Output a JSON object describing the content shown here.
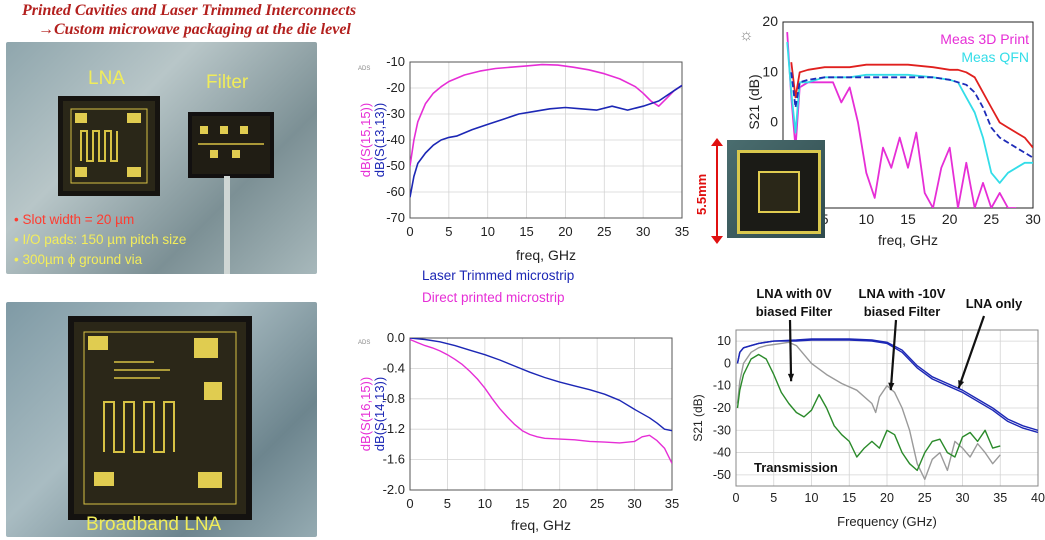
{
  "header": {
    "line1": "Printed Cavities and Laser Trimmed Interconnects",
    "line2": "→Custom microwave packaging at the die level"
  },
  "photo_top": {
    "label_lna": "LNA",
    "label_filter": "Filter",
    "bullets": [
      "Slot width = 20 µm",
      "I/O pads: 150 µm pitch size",
      "300µm ϕ ground via"
    ]
  },
  "photo_bottom": {
    "label": "Broadband LNA"
  },
  "mid_legend": {
    "laser": "Laser Trimmed microstrip",
    "direct": "Direct printed microstrip"
  },
  "colors": {
    "header": "#b3201e",
    "magenta": "#e62ed6",
    "navy": "#1c27b5",
    "red": "#e0201e",
    "dark_blue": "#1e2bb8",
    "cyan": "#33dde8",
    "green": "#2a8a2a",
    "gray": "#9a9a9a",
    "arrow_red": "#e01010"
  },
  "inset": {
    "dimension": "5.5mm"
  },
  "chart_data": [
    {
      "type": "line",
      "id": "return-loss",
      "badge": "ADS",
      "xlabel": "freq, GHz",
      "ylabel_series": [
        "dB(S(15,15))",
        "dB(S(13,13))"
      ],
      "xlim": [
        0,
        35
      ],
      "ylim": [
        -70,
        -10
      ],
      "xticks": [
        0,
        5,
        10,
        15,
        20,
        25,
        30,
        35
      ],
      "yticks": [
        -10,
        -20,
        -30,
        -40,
        -50,
        -60,
        -70
      ],
      "grid": true,
      "series": [
        {
          "color_key": "magenta",
          "x": [
            0,
            0.5,
            1,
            2,
            3,
            4,
            5,
            7,
            9,
            11,
            13,
            15,
            17,
            19,
            21,
            23,
            25,
            27,
            29,
            30,
            31,
            32,
            33,
            34,
            35
          ],
          "y": [
            -50,
            -40,
            -33,
            -26,
            -22,
            -19.5,
            -17.5,
            -15,
            -13.5,
            -12.5,
            -12,
            -11.5,
            -11,
            -11.2,
            -12,
            -13,
            -14.5,
            -16.5,
            -19.5,
            -22,
            -25,
            -27,
            -24,
            -21,
            -19
          ]
        },
        {
          "color_key": "navy",
          "x": [
            0,
            0.5,
            1,
            2,
            3,
            4,
            5,
            6,
            8,
            10,
            12,
            14,
            16,
            18,
            20,
            22,
            24,
            26,
            28,
            30,
            32,
            34,
            35
          ],
          "y": [
            -62,
            -54,
            -49,
            -45,
            -42,
            -40,
            -39,
            -38.5,
            -36,
            -34,
            -32,
            -30,
            -29,
            -28,
            -27.5,
            -28,
            -28.5,
            -27,
            -28.5,
            -27,
            -25,
            -21,
            -19
          ]
        }
      ]
    },
    {
      "type": "line",
      "id": "insertion-loss",
      "badge": "ADS",
      "xlabel": "freq, GHz",
      "ylabel_series": [
        "dB(S(16,15))",
        "dB(S(14,13))"
      ],
      "xlim": [
        0,
        35
      ],
      "ylim": [
        -2.0,
        0.0
      ],
      "xticks": [
        0,
        5,
        10,
        15,
        20,
        25,
        30,
        35
      ],
      "yticks": [
        "0.0",
        "-0.4",
        "-0.8",
        "-1.2",
        "-1.6",
        "-2.0"
      ],
      "yticks_values": [
        0,
        -0.4,
        -0.8,
        -1.2,
        -1.6,
        -2.0
      ],
      "grid": true,
      "series": [
        {
          "color_key": "magenta",
          "x": [
            0,
            1,
            2,
            3,
            4,
            5,
            6,
            7,
            8,
            9,
            10,
            11,
            12,
            13,
            14,
            15,
            16,
            17,
            18,
            20,
            22,
            24,
            26,
            28,
            30,
            31,
            32,
            33,
            34,
            35
          ],
          "y": [
            -0.02,
            -0.06,
            -0.1,
            -0.13,
            -0.17,
            -0.22,
            -0.28,
            -0.35,
            -0.44,
            -0.54,
            -0.66,
            -0.8,
            -0.93,
            -1.04,
            -1.14,
            -1.22,
            -1.27,
            -1.3,
            -1.32,
            -1.33,
            -1.34,
            -1.36,
            -1.37,
            -1.38,
            -1.36,
            -1.3,
            -1.28,
            -1.35,
            -1.45,
            -1.65
          ]
        },
        {
          "color_key": "navy",
          "x": [
            0,
            2,
            4,
            6,
            8,
            10,
            12,
            14,
            16,
            18,
            20,
            22,
            24,
            26,
            28,
            30,
            32,
            33,
            34,
            35
          ],
          "y": [
            0,
            -0.02,
            -0.05,
            -0.1,
            -0.16,
            -0.22,
            -0.29,
            -0.37,
            -0.45,
            -0.52,
            -0.58,
            -0.63,
            -0.68,
            -0.74,
            -0.82,
            -0.94,
            -1.05,
            -1.12,
            -1.2,
            -1.22
          ]
        }
      ]
    },
    {
      "type": "line",
      "id": "package-s21",
      "xlabel": "freq, GHz",
      "ylabel": "S21 (dB)",
      "xlim": [
        0,
        30
      ],
      "ylim": [
        -17,
        20
      ],
      "xticks": [
        5,
        10,
        15,
        20,
        25,
        30
      ],
      "yticks": [
        20,
        10,
        0
      ],
      "grid": false,
      "series": [
        {
          "name": "Meas 3D Print",
          "color_key": "magenta",
          "x": [
            0.5,
            1,
            1.5,
            2,
            3,
            4,
            5,
            6,
            7,
            8,
            9,
            10,
            11,
            12,
            13,
            14,
            15,
            16,
            17,
            18,
            19,
            20,
            21,
            22,
            23,
            24,
            25,
            26,
            27,
            28
          ],
          "y": [
            18,
            5,
            -5,
            7,
            8,
            8,
            8,
            8,
            4,
            7,
            0,
            -10,
            -15,
            -5,
            -9,
            -3,
            -9,
            -2,
            -14,
            -17,
            -9,
            -5,
            -17,
            -8,
            -17,
            -12,
            -17,
            -14,
            -17,
            -17
          ]
        },
        {
          "name": "Meas QFN",
          "color_key": "cyan",
          "x": [
            0.5,
            1,
            1.5,
            2,
            3,
            5,
            8,
            10,
            12,
            15,
            18,
            20,
            21,
            22,
            23,
            24,
            25,
            26,
            27,
            28,
            29,
            30
          ],
          "y": [
            16,
            6,
            -2,
            8,
            8,
            9,
            9,
            9.5,
            9.5,
            9.5,
            9,
            8.5,
            8,
            5,
            2,
            -3,
            -10,
            -12,
            -10,
            -9,
            -8,
            -8
          ]
        },
        {
          "color_key": "red",
          "x": [
            1,
            1.5,
            2,
            3,
            5,
            8,
            10,
            12,
            15,
            18,
            20,
            21,
            22,
            23,
            24,
            25,
            26,
            27,
            28,
            29,
            30
          ],
          "y": [
            12,
            5,
            10,
            10.5,
            11,
            11,
            11.5,
            11.5,
            11.5,
            11,
            10.5,
            10.5,
            10,
            9,
            6,
            3,
            0,
            -1,
            -2,
            -3,
            -5
          ]
        },
        {
          "color_key": "dark_blue",
          "dash": true,
          "x": [
            1,
            1.5,
            2,
            3,
            5,
            8,
            10,
            12,
            15,
            18,
            20,
            21,
            22,
            23,
            24,
            25,
            26,
            27,
            28,
            29,
            30
          ],
          "y": [
            10,
            3,
            8,
            8.5,
            9,
            9,
            9,
            9,
            9,
            9,
            8.5,
            8,
            7.5,
            6,
            3,
            -1,
            -3,
            -4,
            -5,
            -6,
            -7
          ]
        }
      ]
    },
    {
      "type": "line",
      "id": "lna-filter-s21",
      "xlabel": "Frequency (GHz)",
      "ylabel": "S21 (dB)",
      "xlim": [
        0,
        40
      ],
      "ylim": [
        -55,
        15
      ],
      "xticks": [
        0,
        5,
        10,
        15,
        20,
        25,
        30,
        35,
        40
      ],
      "yticks": [
        10,
        0,
        -10,
        -20,
        -30,
        -40,
        -50
      ],
      "grid": true,
      "annotations": [
        "LNA with 0V biased Filter",
        "LNA with -10V biased Filter",
        "LNA only",
        "Transmission"
      ],
      "series": [
        {
          "color_key": "navy",
          "x": [
            0.2,
            0.5,
            1,
            2,
            3,
            5,
            8,
            10,
            15,
            18,
            20,
            22,
            24,
            26,
            28,
            30,
            32,
            34,
            36,
            38,
            40
          ],
          "y": [
            0,
            5,
            7,
            8,
            9,
            10,
            10,
            10.5,
            10.5,
            10,
            9,
            5,
            -2,
            -7,
            -10,
            -13,
            -17,
            -21,
            -26,
            -29,
            -31
          ]
        },
        {
          "color_key": "navy",
          "x": [
            0.2,
            0.5,
            1,
            2,
            3,
            5,
            8,
            10,
            15,
            18,
            20,
            22,
            24,
            26,
            28,
            30,
            32,
            34,
            36,
            38,
            40
          ],
          "y": [
            0,
            5,
            7,
            8,
            9,
            10,
            10.5,
            11,
            11,
            10.5,
            9.5,
            6,
            -1,
            -6,
            -9,
            -12,
            -16,
            -20,
            -25,
            -28,
            -30
          ]
        },
        {
          "color_key": "gray",
          "x": [
            0.2,
            0.5,
            1,
            2,
            3,
            4,
            5,
            6,
            7,
            8,
            10,
            12,
            14,
            16,
            18,
            18.5,
            19,
            20,
            21,
            22,
            23,
            24,
            25,
            26,
            27,
            28,
            29,
            30,
            31,
            32,
            33,
            34,
            35
          ],
          "y": [
            -18,
            -8,
            0,
            5,
            7,
            8,
            8.5,
            9,
            9.5,
            8,
            0,
            -5,
            -9,
            -12,
            -18,
            -22,
            -15,
            -10,
            -13,
            -20,
            -30,
            -45,
            -52,
            -43,
            -40,
            -48,
            -35,
            -38,
            -42,
            -36,
            -40,
            -45,
            -41
          ]
        },
        {
          "color_key": "green",
          "x": [
            0.2,
            0.5,
            1,
            2,
            3,
            4,
            5,
            6,
            7,
            8,
            9,
            10,
            11,
            12,
            13,
            14,
            15,
            16,
            17,
            18,
            19,
            20,
            21,
            22,
            23,
            24,
            25,
            26,
            27,
            28,
            29,
            30,
            31,
            32,
            33,
            34,
            35
          ],
          "y": [
            -20,
            -12,
            -5,
            2,
            4,
            2,
            -5,
            -13,
            -18,
            -22,
            -24,
            -21,
            -14,
            -20,
            -28,
            -32,
            -35,
            -42,
            -38,
            -35,
            -38,
            -30,
            -32,
            -40,
            -45,
            -48,
            -40,
            -35,
            -34,
            -40,
            -42,
            -33,
            -31,
            -35,
            -30,
            -38,
            -37
          ]
        }
      ]
    }
  ]
}
